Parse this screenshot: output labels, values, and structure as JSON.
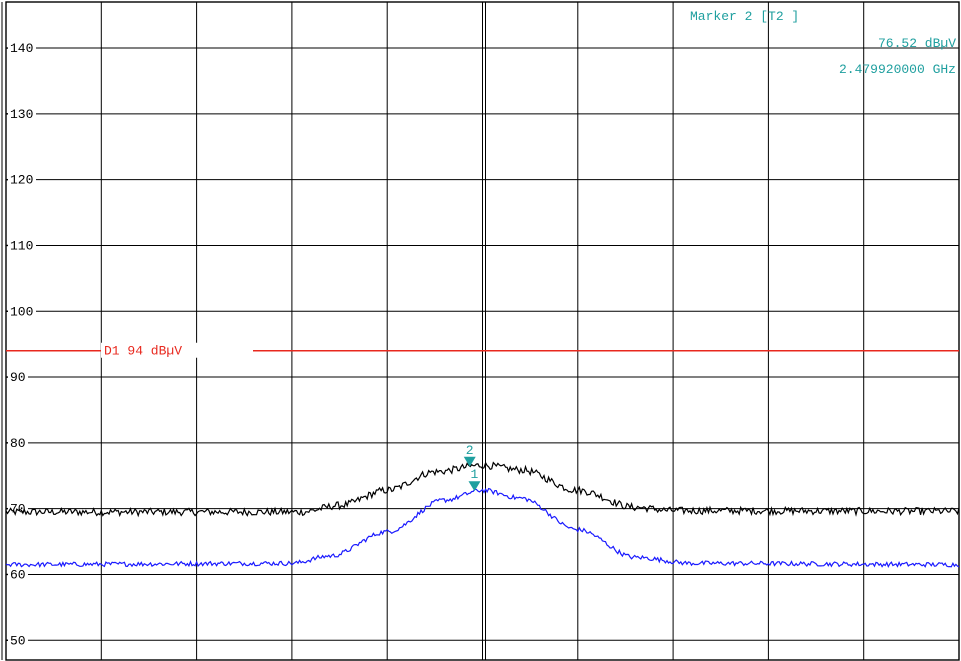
{
  "chart_data": {
    "type": "line",
    "title": "",
    "xlabel": "",
    "ylabel": "",
    "ylim": [
      47,
      147
    ],
    "y_ticks": [
      50,
      60,
      70,
      80,
      90,
      100,
      110,
      120,
      130,
      140
    ],
    "x_divisions": 10,
    "grid": true,
    "series": [
      {
        "color": "#000000",
        "noise": 0.55,
        "points": [
          [
            0,
            69.5
          ],
          [
            3.1,
            69.5
          ],
          [
            3.5,
            70.5
          ],
          [
            4.0,
            72.8
          ],
          [
            4.5,
            75.6
          ],
          [
            5.0,
            76.6
          ],
          [
            5.4,
            75.9
          ],
          [
            6.0,
            72.8
          ],
          [
            6.6,
            70.2
          ],
          [
            7.0,
            69.7
          ],
          [
            10,
            69.6
          ]
        ]
      },
      {
        "color": "#1a1aff",
        "noise": 0.35,
        "points": [
          [
            0,
            61.5
          ],
          [
            3.0,
            61.7
          ],
          [
            3.4,
            62.8
          ],
          [
            4.0,
            66.5
          ],
          [
            4.6,
            71.3
          ],
          [
            5.0,
            72.8
          ],
          [
            5.4,
            71.6
          ],
          [
            6.0,
            66.8
          ],
          [
            6.6,
            62.6
          ],
          [
            7.2,
            61.7
          ],
          [
            10,
            61.5
          ]
        ]
      }
    ],
    "display_line": {
      "label": "D1 94 dBµV",
      "value": 94,
      "color": "#e8281e"
    },
    "markers": [
      {
        "number": "2",
        "x": 4.95,
        "y": 76.52,
        "color": "#1f9f9f"
      },
      {
        "number": "1",
        "x": 5.0,
        "y": 72.8,
        "color": "#1f9f9f"
      }
    ],
    "marker_info": {
      "line1": "Marker 2 [T2 ]",
      "line2": "76.52 dBµV",
      "line3": "2.479920000 GHz"
    }
  }
}
